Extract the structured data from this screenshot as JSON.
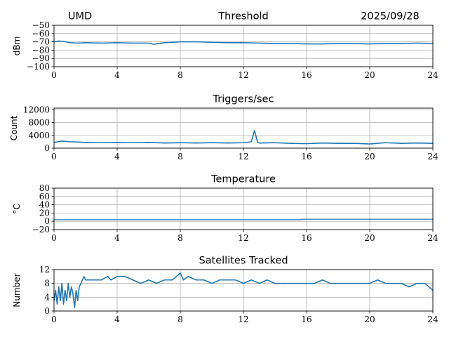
{
  "header": {
    "station": "UMD",
    "date": "2025/09/28"
  },
  "colors": {
    "series": "#1f77b4",
    "grid": "#b0b0b0"
  },
  "chart_data": [
    {
      "type": "line",
      "title": "Threshold",
      "ylabel": "dBm",
      "xlim": [
        0,
        24
      ],
      "ylim": [
        -100,
        -50
      ],
      "xticks": [
        0,
        4,
        8,
        12,
        16,
        20,
        24
      ],
      "yticks": [
        -100,
        -90,
        -80,
        -70,
        -60,
        -50
      ],
      "ytick_labels": [
        "−100",
        "−90",
        "−80",
        "−70",
        "−60",
        "−50"
      ],
      "grid": true,
      "series": [
        {
          "x": [
            0,
            0.3,
            0.6,
            1,
            1.5,
            2,
            3,
            4,
            5,
            6,
            6.3,
            7,
            8,
            9,
            10,
            11,
            12,
            13,
            14,
            15,
            16,
            17,
            18,
            19,
            20,
            21,
            22,
            23,
            24
          ],
          "values": [
            -70,
            -69,
            -69.5,
            -71,
            -71.5,
            -71,
            -71.5,
            -71,
            -71.5,
            -71.5,
            -73,
            -71,
            -70,
            -70,
            -70.5,
            -71,
            -71,
            -71.5,
            -72,
            -72,
            -72.5,
            -72.5,
            -72,
            -72,
            -72.5,
            -72,
            -72,
            -71.5,
            -72
          ]
        }
      ]
    },
    {
      "type": "line",
      "title": "Triggers/sec",
      "ylabel": "Count",
      "xlim": [
        0,
        24
      ],
      "ylim": [
        0,
        12500
      ],
      "xticks": [
        0,
        4,
        8,
        12,
        16,
        20,
        24
      ],
      "yticks": [
        0,
        4000,
        8000,
        12000
      ],
      "ytick_labels": [
        "0",
        "4000",
        "8000",
        "12000"
      ],
      "grid": true,
      "series": [
        {
          "x": [
            0,
            0.5,
            1,
            1.5,
            2,
            3,
            4,
            5,
            6,
            7,
            8,
            9,
            10,
            11,
            12,
            12.5,
            12.7,
            12.9,
            13,
            14,
            15,
            16,
            17,
            18,
            19,
            20,
            21,
            22,
            23,
            24
          ],
          "values": [
            1800,
            2200,
            2000,
            1900,
            1800,
            1700,
            1800,
            1700,
            1800,
            1600,
            1700,
            1600,
            1700,
            1600,
            1700,
            2000,
            5500,
            1800,
            1600,
            1700,
            1500,
            1400,
            1600,
            1500,
            1500,
            1300,
            1700,
            1500,
            1600,
            1500
          ]
        }
      ]
    },
    {
      "type": "line",
      "title": "Temperature",
      "ylabel": "°C",
      "xlim": [
        0,
        24
      ],
      "ylim": [
        -20,
        80
      ],
      "xticks": [
        0,
        4,
        8,
        12,
        16,
        20,
        24
      ],
      "yticks": [
        -20,
        0,
        20,
        40,
        60,
        80
      ],
      "ytick_labels": [
        "−20",
        "0",
        "20",
        "40",
        "60",
        "80"
      ],
      "grid": true,
      "series": [
        {
          "x": [
            0,
            4,
            8,
            12,
            15.6,
            15.7,
            20,
            24
          ],
          "values": [
            4,
            4,
            4,
            4,
            4,
            5,
            5,
            5
          ]
        }
      ]
    },
    {
      "type": "line",
      "title": "Satellites Tracked",
      "ylabel": "Number",
      "xlim": [
        0,
        24
      ],
      "ylim": [
        0,
        12
      ],
      "xticks": [
        0,
        4,
        8,
        12,
        16,
        20,
        24
      ],
      "yticks": [
        0,
        4,
        8,
        12
      ],
      "ytick_labels": [
        "0",
        "4",
        "8",
        "12"
      ],
      "grid": true,
      "series": [
        {
          "x": [
            0,
            0.1,
            0.2,
            0.3,
            0.4,
            0.5,
            0.6,
            0.7,
            0.8,
            0.9,
            1.0,
            1.1,
            1.2,
            1.3,
            1.4,
            1.5,
            1.6,
            1.7,
            1.8,
            1.9,
            2.0,
            2.2,
            2.5,
            3.0,
            3.4,
            3.6,
            4.0,
            4.5,
            5.0,
            5.5,
            6.0,
            6.5,
            7.0,
            7.5,
            8.0,
            8.2,
            8.5,
            9.0,
            9.5,
            10.0,
            10.5,
            11.0,
            11.5,
            12.0,
            12.5,
            13.0,
            13.5,
            14.0,
            14.5,
            15.0,
            15.5,
            16.0,
            16.5,
            17.0,
            17.5,
            18.0,
            18.5,
            19.0,
            19.5,
            20.0,
            20.5,
            21.0,
            21.5,
            22.0,
            22.5,
            23.0,
            23.5,
            24.0
          ],
          "values": [
            3,
            6,
            2,
            7,
            3,
            8,
            2,
            6,
            3,
            8,
            4,
            7,
            5,
            1,
            6,
            3,
            7,
            8,
            9,
            10,
            9,
            9,
            9,
            9,
            10,
            9,
            10,
            10,
            9,
            8,
            9,
            8,
            9,
            9,
            11,
            9,
            10,
            9,
            9,
            8,
            9,
            9,
            9,
            8,
            9,
            8,
            9,
            8,
            8,
            8,
            8,
            8,
            8,
            9,
            8,
            8,
            8,
            8,
            8,
            8,
            9,
            8,
            8,
            8,
            7,
            8,
            8,
            6
          ]
        }
      ]
    }
  ]
}
